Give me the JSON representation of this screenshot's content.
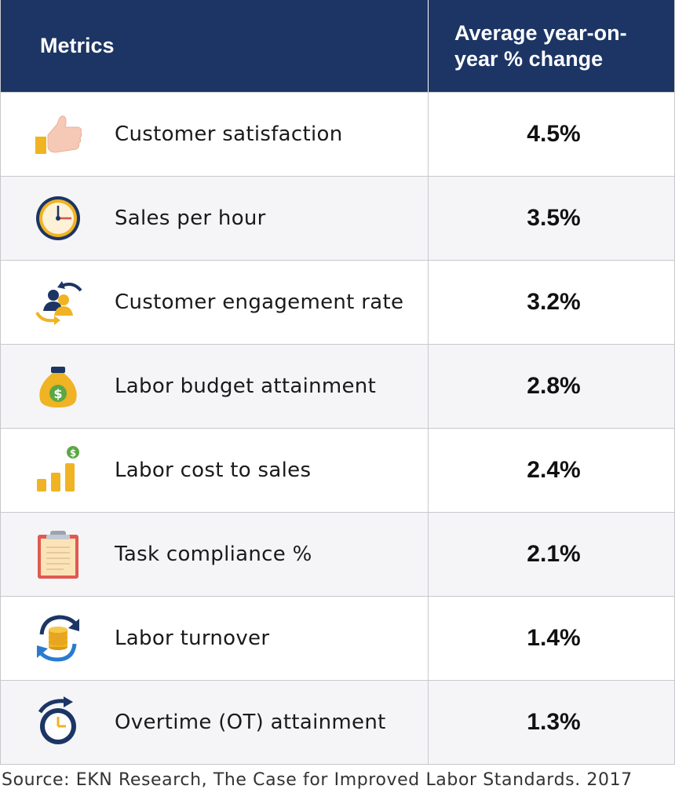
{
  "header": {
    "metrics_label": "Metrics",
    "change_label": "Average year-on-year % change"
  },
  "rows": [
    {
      "icon": "thumbs-up-icon",
      "label": "Customer satisfaction",
      "value": "4.5%"
    },
    {
      "icon": "clock-icon",
      "label": "Sales per hour",
      "value": "3.5%"
    },
    {
      "icon": "people-exchange-icon",
      "label": "Customer engagement rate",
      "value": "3.2%"
    },
    {
      "icon": "money-bag-icon",
      "label": "Labor budget attainment",
      "value": "2.8%"
    },
    {
      "icon": "bar-chart-dollar-icon",
      "label": "Labor cost to sales",
      "value": "2.4%"
    },
    {
      "icon": "clipboard-icon",
      "label": "Task compliance %",
      "value": "2.1%"
    },
    {
      "icon": "coins-cycle-icon",
      "label": "Labor turnover",
      "value": "1.4%"
    },
    {
      "icon": "stopwatch-icon",
      "label": "Overtime (OT) attainment",
      "value": "1.3%"
    }
  ],
  "source": "Source: EKN Research, The Case for Improved Labor Standards. 2017",
  "colors": {
    "header_bg": "#1c3564",
    "navy": "#1c3564",
    "gold": "#f0b323",
    "green": "#5aa845",
    "skin": "#f5c9b5",
    "red": "#d9534f"
  }
}
